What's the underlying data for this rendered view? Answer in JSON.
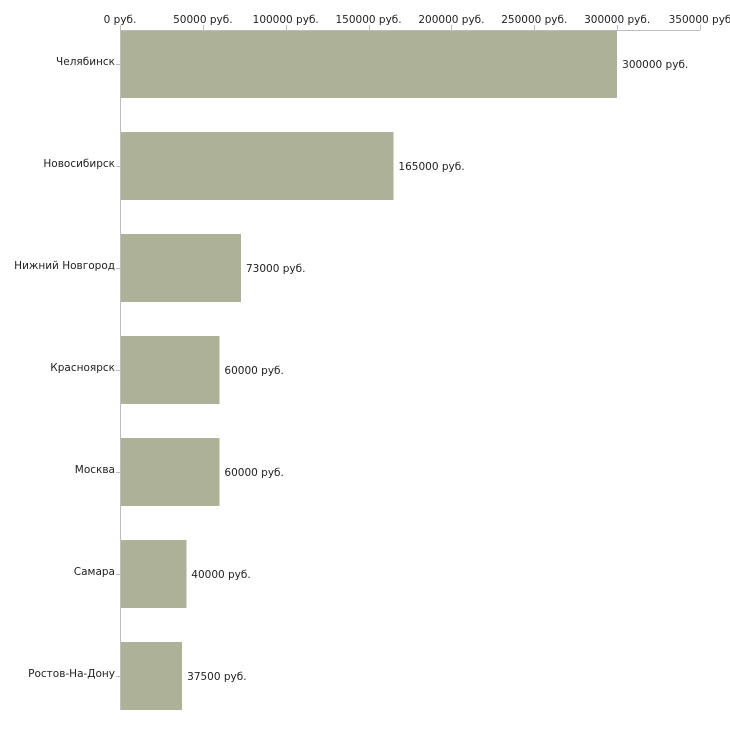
{
  "chart_data": {
    "type": "bar",
    "orientation": "horizontal",
    "categories": [
      "Челябинск",
      "Новосибирск",
      "Нижний Новгород",
      "Красноярск",
      "Москва",
      "Самара",
      "Ростов-На-Дону"
    ],
    "values": [
      300000,
      165000,
      73000,
      60000,
      60000,
      40000,
      37500
    ],
    "value_labels": [
      "300000 руб.",
      "165000 руб.",
      "73000 руб.",
      "60000 руб.",
      "60000 руб.",
      "40000 руб.",
      "37500 руб."
    ],
    "x_ticks": [
      0,
      50000,
      100000,
      150000,
      200000,
      250000,
      300000,
      350000
    ],
    "x_tick_labels": [
      "0 руб.",
      "50000 руб.",
      "100000 руб.",
      "150000 руб.",
      "200000 руб.",
      "250000 руб.",
      "300000 руб.",
      "350000 руб"
    ],
    "xlim": [
      0,
      350000
    ],
    "x_axis_position": "top",
    "title": "",
    "xlabel": "",
    "ylabel": "",
    "grid": false,
    "legend": "none",
    "bar_color": "#adb197",
    "axis_color": "#bdbdbd",
    "text_color": "#222222"
  }
}
